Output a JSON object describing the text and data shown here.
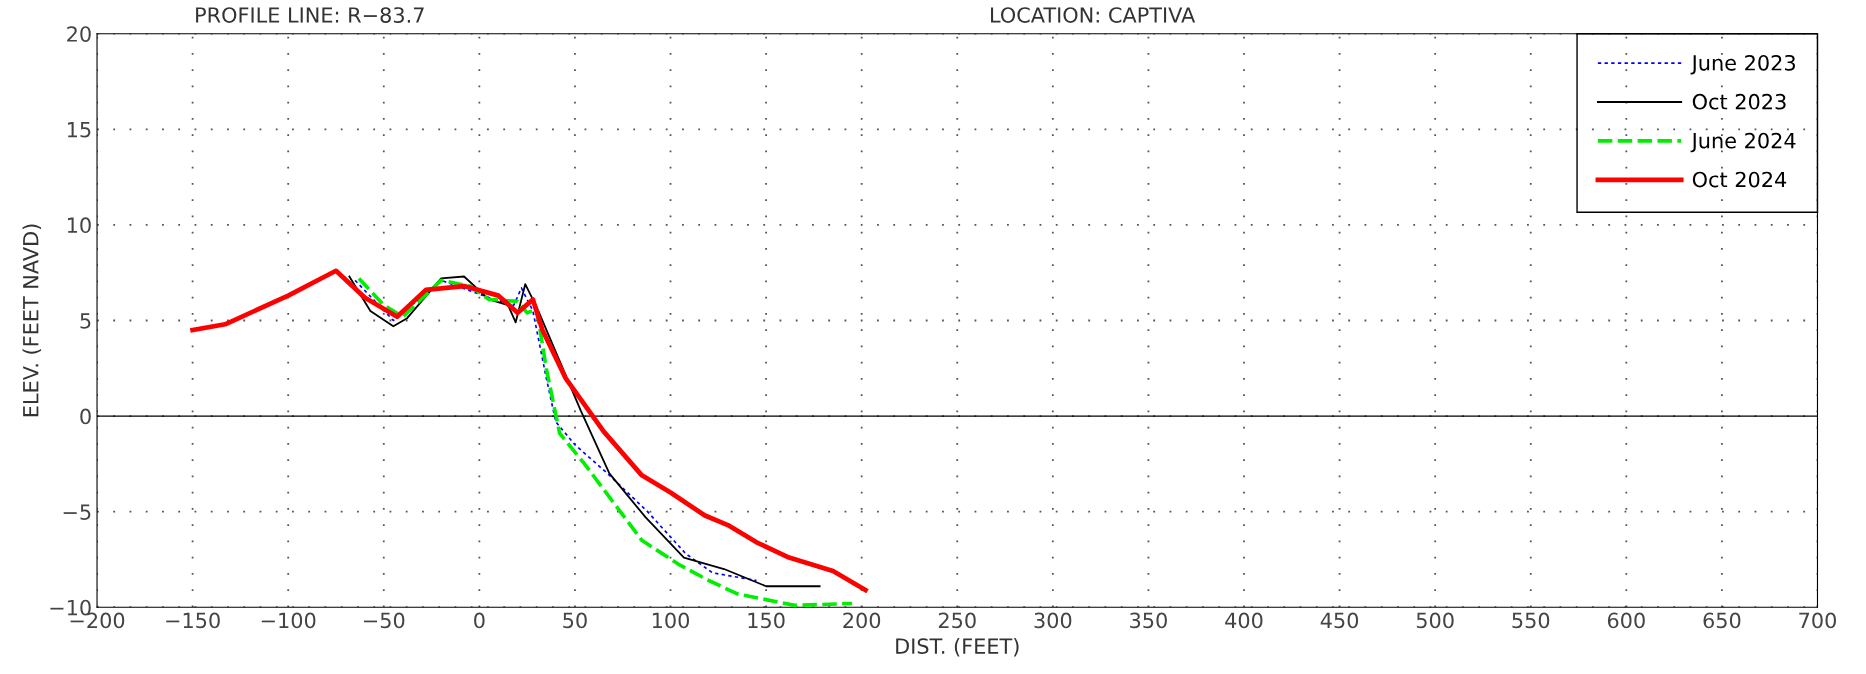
{
  "chart_data": {
    "type": "line",
    "title": "PROFILE LINE: R−83.7",
    "subtitle": "LOCATION: CAPTIVA",
    "xlabel": "DIST. (FEET)",
    "ylabel": "ELEV. (FEET NAVD)",
    "xlim": [
      -200,
      700
    ],
    "xticks": [
      -200,
      -150,
      -100,
      -50,
      0,
      50,
      100,
      150,
      200,
      250,
      300,
      350,
      400,
      450,
      500,
      550,
      600,
      650,
      700
    ],
    "ylim": [
      -10,
      20
    ],
    "yticks": [
      -10,
      -5,
      0,
      5,
      10,
      15,
      20
    ],
    "grid": true,
    "legend": "top right",
    "marker": "none",
    "ref_lines": [
      {
        "axis": "y",
        "value": 0,
        "color": "#000000",
        "line_style": "solid"
      }
    ],
    "series": [
      {
        "name": "June 2023",
        "color": "#0000ff",
        "line_style": "dotted",
        "x": [
          -65,
          -45,
          -20,
          5,
          18,
          22,
          28,
          35,
          40,
          50,
          67,
          88,
          108,
          122,
          145
        ],
        "values": [
          7.1,
          5.0,
          7.1,
          6.2,
          5.8,
          6.7,
          5.5,
          2.0,
          -0.3,
          -1.5,
          -3.0,
          -5.0,
          -7.2,
          -8.2,
          -8.6
        ]
      },
      {
        "name": "Oct 2023",
        "color": "#000000",
        "line_style": "solid",
        "x": [
          -68,
          -57,
          -45,
          -38,
          -20,
          -8,
          5,
          15,
          19,
          24,
          30,
          53,
          68,
          87,
          107,
          128,
          150,
          178
        ],
        "values": [
          7.3,
          5.5,
          4.7,
          5.1,
          7.2,
          7.3,
          6.1,
          5.8,
          4.9,
          6.9,
          5.7,
          0.3,
          -3.0,
          -5.3,
          -7.4,
          -8.0,
          -8.9,
          -8.9
        ]
      },
      {
        "name": "June 2024",
        "color": "#00ee00",
        "line_style": "dashed",
        "x": [
          -63,
          -50,
          -40,
          -20,
          -5,
          5,
          20,
          25,
          30,
          35,
          42,
          55,
          70,
          85,
          105,
          120,
          135,
          150,
          165,
          195
        ],
        "values": [
          7.2,
          5.8,
          5.2,
          7.1,
          6.8,
          6.1,
          6.0,
          5.4,
          5.6,
          2.5,
          -0.9,
          -2.5,
          -4.5,
          -6.5,
          -7.8,
          -8.6,
          -9.3,
          -9.6,
          -9.9,
          -9.8
        ]
      },
      {
        "name": "Oct 2024",
        "color": "#ff0000",
        "line_style": "solid",
        "x": [
          -150,
          -133,
          -100,
          -75,
          -60,
          -43,
          -28,
          -8,
          10,
          20,
          28,
          33,
          45,
          65,
          85,
          100,
          118,
          130,
          145,
          162,
          185,
          202
        ],
        "values": [
          4.5,
          4.8,
          6.3,
          7.6,
          6.2,
          5.2,
          6.6,
          6.8,
          6.3,
          5.4,
          6.1,
          4.5,
          2.0,
          -0.8,
          -3.1,
          -4.0,
          -5.2,
          -5.7,
          -6.6,
          -7.4,
          -8.1,
          -9.1
        ]
      }
    ]
  }
}
